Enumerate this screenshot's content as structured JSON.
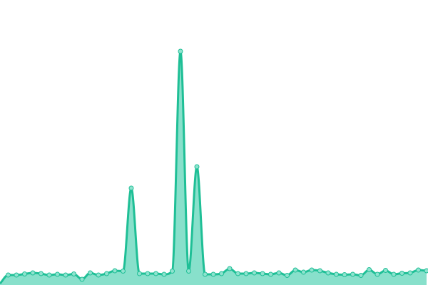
{
  "chart_data": {
    "type": "area",
    "title": "",
    "xlabel": "",
    "ylabel": "",
    "grid": false,
    "legend": "none",
    "curve": "smooth",
    "markers": true,
    "xlim": [
      0,
      52
    ],
    "ylim": [
      0,
      400
    ],
    "x": [
      0,
      1,
      2,
      3,
      4,
      5,
      6,
      7,
      8,
      9,
      10,
      11,
      12,
      13,
      14,
      15,
      16,
      17,
      18,
      19,
      20,
      21,
      22,
      23,
      24,
      25,
      26,
      27,
      28,
      29,
      30,
      31,
      32,
      33,
      34,
      35,
      36,
      37,
      38,
      39,
      40,
      41,
      42,
      43,
      44,
      45,
      46,
      47,
      48,
      49,
      50,
      51,
      52
    ],
    "series": [
      {
        "values": [
          2,
          14,
          14,
          15.5,
          17,
          16,
          14,
          15,
          14,
          15.5,
          8,
          17,
          14,
          16,
          20,
          19.5,
          136,
          16,
          16,
          16,
          15,
          19.5,
          328,
          19.5,
          166,
          15,
          15,
          16,
          23,
          16,
          16,
          17,
          16,
          15,
          17,
          13.5,
          21,
          18,
          21,
          20,
          17,
          15,
          14.5,
          15,
          13.5,
          21.5,
          15,
          20.5,
          15,
          16.5,
          17,
          21,
          20
        ]
      }
    ],
    "colors": {
      "line": "#1fbf96",
      "fill": "#88e0cb",
      "marker_fill": "#8fe3cf",
      "marker_stroke": "#1fbf96"
    }
  }
}
